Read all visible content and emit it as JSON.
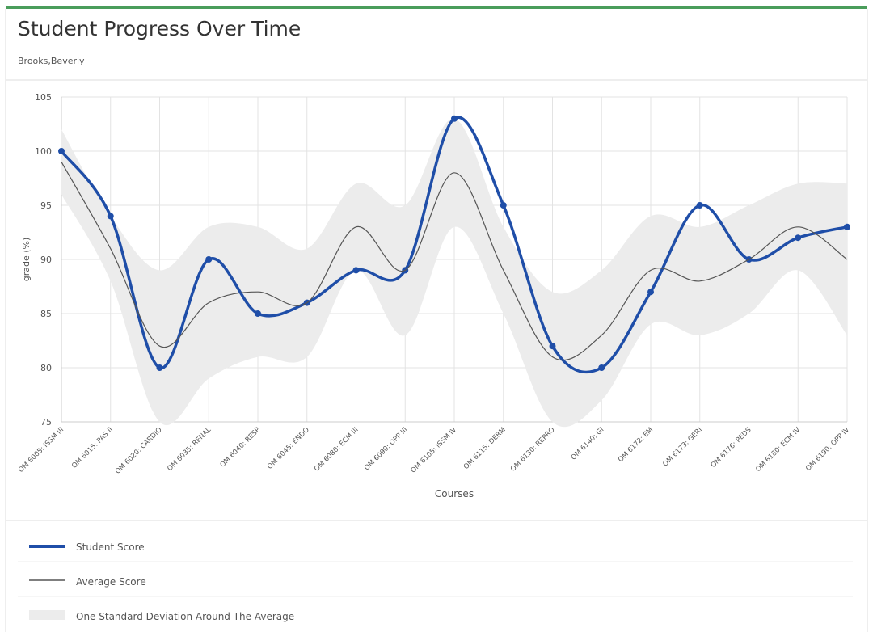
{
  "chart_data": {
    "type": "line",
    "title": "Student Progress Over Time",
    "subtitle": "Brooks,Beverly",
    "x_label": "Courses",
    "y_label": "grade (%)",
    "categories": [
      "OM 6005: ISSM III",
      "OM 6015: PAS II",
      "OM 6020: CARDIO",
      "OM 6035: RENAL",
      "OM 6040: RESP",
      "OM 6045: ENDO",
      "OM 6080: ECM III",
      "OM 6090: OPP III",
      "OM 6105: ISSM IV",
      "OM 6115: DERM",
      "OM 6130: REPRO",
      "OM 6140: GI",
      "OM 6172: EM",
      "OM 6173: GERI",
      "OM 6176: PEDS",
      "OM 6180: ECM IV",
      "OM 6190: OPP IV"
    ],
    "series": [
      {
        "name": "Student Score",
        "color": "#1f4ea8",
        "values": [
          100,
          94,
          80,
          90,
          85,
          86,
          89,
          89,
          103,
          95,
          82,
          80,
          87,
          95,
          90,
          92,
          93
        ]
      },
      {
        "name": "Average Score",
        "color": "#555555",
        "values": [
          99,
          91,
          82,
          86,
          87,
          86,
          93,
          89,
          98,
          89,
          81,
          83,
          89,
          88,
          90,
          93,
          90
        ]
      },
      {
        "name": "One Standard Deviation Around The Average",
        "color": "#ececec",
        "high": [
          102,
          94,
          89,
          93,
          93,
          91,
          97,
          95,
          103,
          93,
          87,
          89,
          94,
          93,
          95,
          97,
          97
        ],
        "low": [
          96,
          88,
          75,
          79,
          81,
          81,
          89,
          83,
          93,
          85,
          75,
          77,
          84,
          83,
          85,
          89,
          83
        ]
      }
    ],
    "ylim": [
      75,
      105
    ],
    "yticks": [
      75,
      80,
      85,
      90,
      95,
      100,
      105
    ],
    "grid": true
  }
}
